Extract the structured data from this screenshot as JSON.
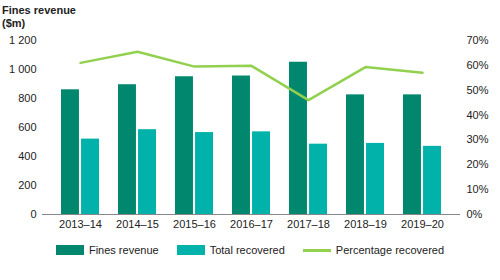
{
  "chart_data": {
    "type": "bar",
    "ylabel": "Fines revenue ($m)",
    "categories": [
      "2013–14",
      "2014–15",
      "2015–16",
      "2016–17",
      "2017–18",
      "2018–19",
      "2019–20"
    ],
    "series": [
      {
        "name": "Fines revenue",
        "type": "bar",
        "color": "#00876e",
        "values": [
          860,
          895,
          950,
          955,
          1050,
          825,
          825
        ]
      },
      {
        "name": "Total recovered",
        "type": "bar",
        "color": "#00b2a9",
        "values": [
          520,
          585,
          565,
          570,
          485,
          490,
          470
        ]
      },
      {
        "name": "Percentage recovered",
        "type": "line",
        "axis": "y2",
        "color": "#92d050",
        "values": [
          61,
          65.5,
          59.5,
          59.8,
          46,
          59.3,
          57
        ]
      }
    ],
    "ylim": [
      0,
      1200
    ],
    "yticks": [
      0,
      200,
      400,
      600,
      800,
      {
        "value": 1000,
        "label": "1 000"
      },
      {
        "value": 1200,
        "label": "1 200"
      }
    ],
    "y2lim": [
      0,
      70
    ],
    "y2ticks": [
      {
        "value": 0,
        "label": "0%"
      },
      {
        "value": 10,
        "label": "10%"
      },
      {
        "value": 20,
        "label": "20%"
      },
      {
        "value": 30,
        "label": "30%"
      },
      {
        "value": 40,
        "label": "40%"
      },
      {
        "value": 50,
        "label": "50%"
      },
      {
        "value": 60,
        "label": "60%"
      },
      {
        "value": 70,
        "label": "70%"
      }
    ],
    "grid": false,
    "legend": "bottom"
  }
}
